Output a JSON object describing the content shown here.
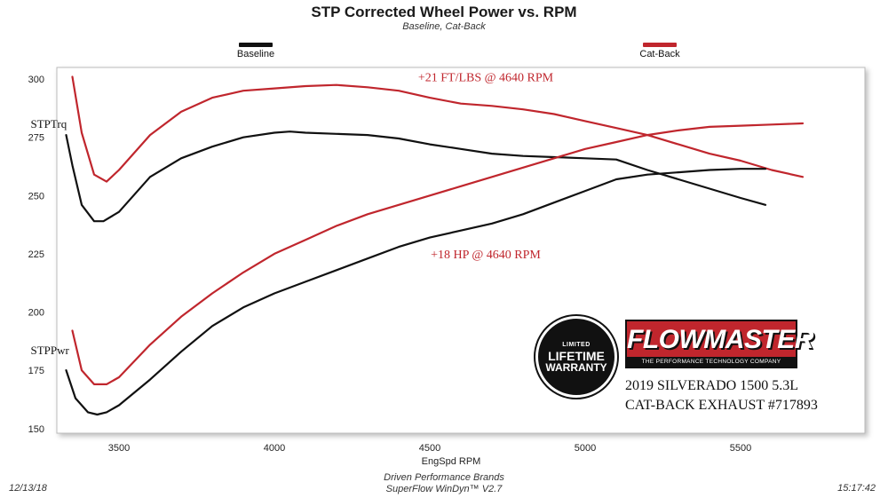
{
  "header": {
    "title": "STP Corrected Wheel Power vs. RPM",
    "subtitle": "Baseline, Cat-Back"
  },
  "legend": [
    {
      "label": "Baseline",
      "color": "#111111"
    },
    {
      "label": "Cat-Back",
      "color": "#c0262d"
    }
  ],
  "chart_data": {
    "type": "line",
    "title": "STP Corrected Wheel Power vs. RPM",
    "subtitle": "Baseline, Cat-Back",
    "xlabel": "EngSpd  RPM",
    "ylabel": "",
    "xlim": [
      3300,
      5900
    ],
    "ylim": [
      148,
      305
    ],
    "x_ticks": [
      3500,
      4000,
      4500,
      5000,
      5500
    ],
    "y_ticks": [
      150,
      175,
      200,
      225,
      250,
      275,
      300
    ],
    "legend_position": "top",
    "grid": false,
    "series": [
      {
        "name": "Baseline",
        "group": "STPTrq",
        "color": "#111111",
        "x": [
          3330,
          3350,
          3380,
          3420,
          3450,
          3500,
          3600,
          3700,
          3800,
          3900,
          4000,
          4050,
          4100,
          4200,
          4300,
          4400,
          4500,
          4600,
          4700,
          4800,
          4900,
          5000,
          5100,
          5200,
          5300,
          5400,
          5500,
          5580
        ],
        "y": [
          276,
          263,
          246,
          239,
          239,
          243,
          258,
          266,
          271,
          275,
          277,
          277.5,
          277,
          276.5,
          276,
          274.5,
          272,
          270,
          268,
          267,
          266.5,
          266,
          265.5,
          261,
          257,
          253,
          249,
          246
        ]
      },
      {
        "name": "Cat-Back",
        "group": "STPTrq",
        "color": "#c0262d",
        "x": [
          3350,
          3380,
          3420,
          3460,
          3500,
          3600,
          3700,
          3800,
          3900,
          4000,
          4100,
          4200,
          4300,
          4400,
          4500,
          4600,
          4700,
          4800,
          4900,
          5000,
          5100,
          5200,
          5300,
          5400,
          5500,
          5600,
          5700
        ],
        "y": [
          301,
          277,
          259,
          256,
          261,
          276,
          286,
          292,
          295,
          296,
          297,
          297.5,
          296.5,
          295,
          292,
          289.5,
          288.5,
          287,
          285,
          282,
          279,
          276,
          272,
          268,
          265,
          261,
          258
        ]
      },
      {
        "name": "Baseline",
        "group": "STPPwr",
        "color": "#111111",
        "x": [
          3330,
          3360,
          3400,
          3430,
          3460,
          3500,
          3600,
          3700,
          3800,
          3900,
          4000,
          4100,
          4200,
          4300,
          4400,
          4500,
          4600,
          4700,
          4800,
          4900,
          5000,
          5100,
          5200,
          5300,
          5400,
          5500,
          5580
        ],
        "y": [
          175,
          163,
          157,
          156,
          157,
          160,
          171,
          183,
          194,
          202,
          208,
          213,
          218,
          223,
          228,
          232,
          235,
          238,
          242,
          247,
          252,
          257,
          259,
          260,
          261,
          261.5,
          261.5
        ]
      },
      {
        "name": "Cat-Back",
        "group": "STPPwr",
        "color": "#c0262d",
        "x": [
          3350,
          3380,
          3420,
          3460,
          3500,
          3600,
          3700,
          3800,
          3900,
          4000,
          4100,
          4200,
          4300,
          4400,
          4500,
          4600,
          4700,
          4800,
          4900,
          5000,
          5100,
          5200,
          5300,
          5400,
          5500,
          5600,
          5700
        ],
        "y": [
          192,
          175,
          169,
          169,
          172,
          186,
          198,
          208,
          217,
          225,
          231,
          237,
          242,
          246,
          250,
          254,
          258,
          262,
          266,
          270,
          273,
          276,
          278,
          279.5,
          280,
          280.5,
          281
        ]
      }
    ],
    "series_labels": [
      {
        "text": "STPTrq",
        "x": 3330,
        "y": 279
      },
      {
        "text": "STPPwr",
        "x": 3330,
        "y": 182
      }
    ],
    "annotations": [
      {
        "text": "+21 FT/LBS @ 4640 RPM",
        "x": 4680,
        "y": 299
      },
      {
        "text": "+18 HP @ 4640 RPM",
        "x": 4680,
        "y": 223
      }
    ]
  },
  "badge": {
    "top": "LIMITED",
    "line1": "LIFETIME",
    "line2": "WARRANTY"
  },
  "brand": {
    "name": "FLOWMASTER",
    "tagline": "THE PERFORMANCE TECHNOLOGY COMPANY"
  },
  "info": {
    "line1": "2019 SILVERADO 1500 5.3L",
    "line2": "CAT-BACK EXHAUST #717893"
  },
  "footer": {
    "date": "12/13/18",
    "company": "Driven Performance Brands",
    "software": "SuperFlow WinDyn™  V2.7",
    "time": "15:17:42"
  }
}
